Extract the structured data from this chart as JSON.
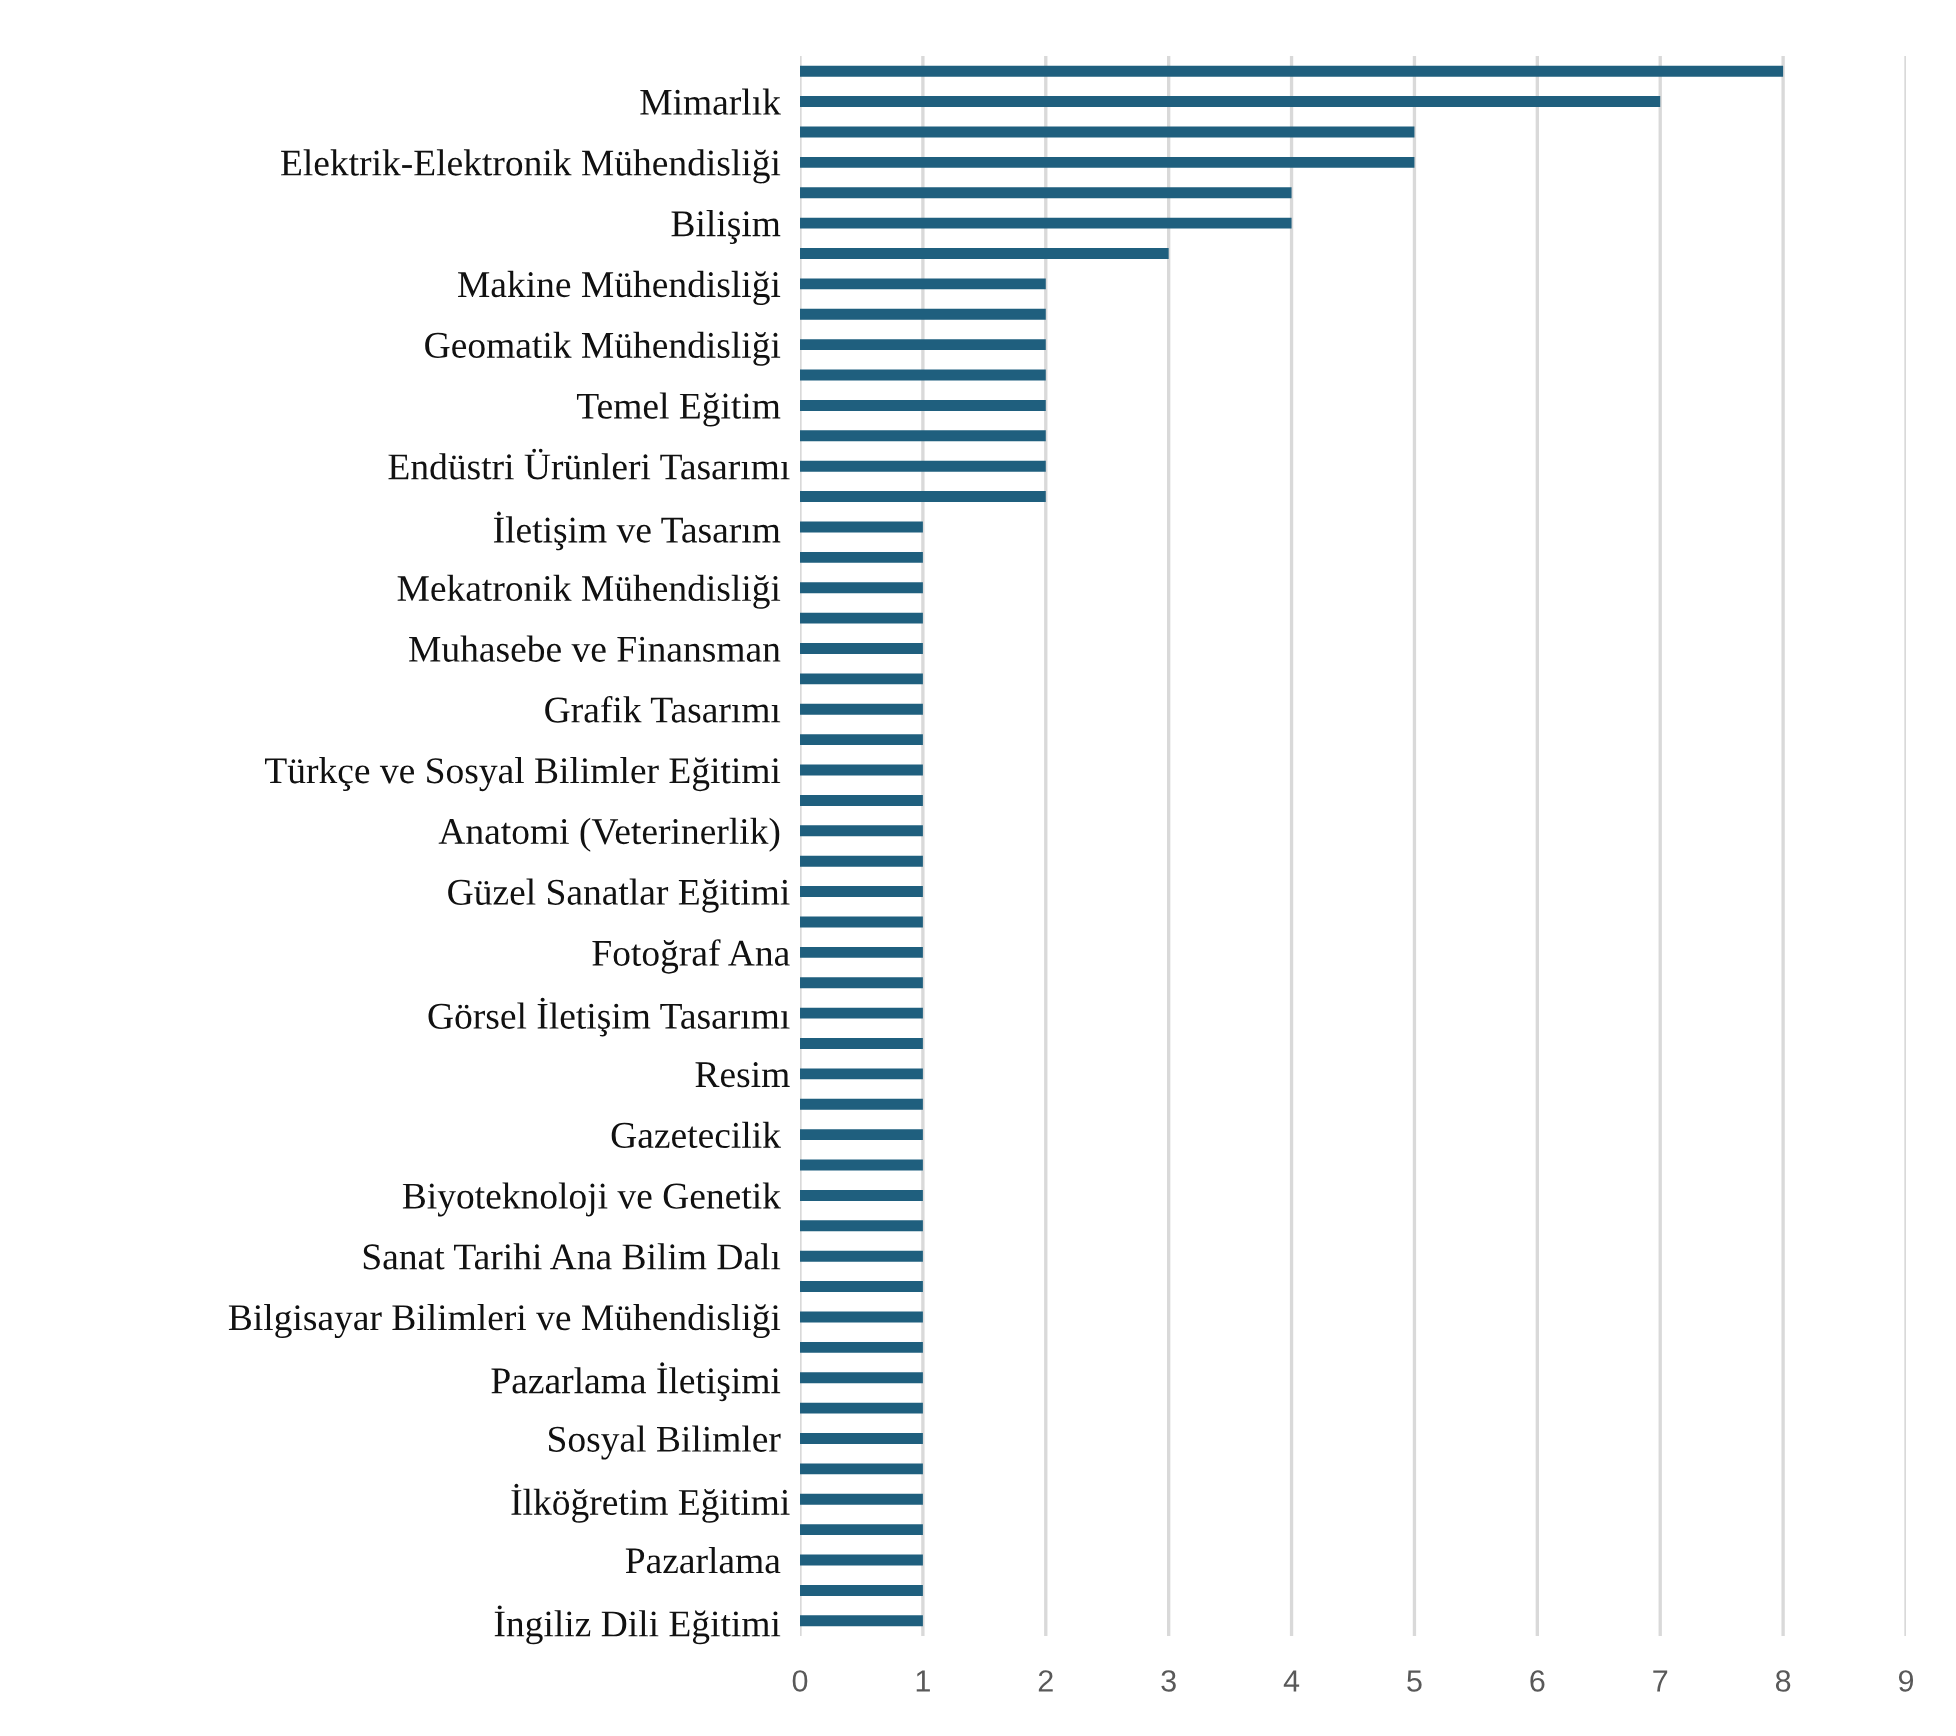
{
  "chart_data": {
    "type": "bar",
    "orientation": "horizontal",
    "categories": [
      null,
      "Mimarlık ",
      null,
      "Elektrik-Elektronik Mühendisliği ",
      null,
      "Bilişim ",
      null,
      "Makine Mühendisliği ",
      null,
      "Geomatik Mühendisliği ",
      null,
      "Temel Eğitim ",
      null,
      "Endüstri Ürünleri Tasarımı",
      null,
      "İletişim ve Tasarım ",
      null,
      "Mekatronik Mühendisliği ",
      null,
      "Muhasebe ve Finansman ",
      null,
      "Grafik Tasarımı ",
      null,
      "Türkçe ve Sosyal Bilimler Eğitimi ",
      null,
      "Anatomi (Veterinerlik) ",
      null,
      "Güzel Sanatlar Eğitimi",
      null,
      "Fotoğraf Ana",
      null,
      "Görsel İletişim Tasarımı",
      null,
      "Resim",
      null,
      "Gazetecilik ",
      null,
      "Biyoteknoloji ve Genetik ",
      null,
      "Sanat Tarihi Ana Bilim Dalı ",
      null,
      "Bilgisayar Bilimleri ve Mühendisliği ",
      null,
      "Pazarlama İletişimi ",
      null,
      "Sosyal Bilimler ",
      null,
      "İlköğretim Eğitimi",
      null,
      "Pazarlama ",
      null,
      "İngiliz Dili Eğitimi "
    ],
    "values": [
      8,
      7,
      5,
      5,
      4,
      4,
      3,
      2,
      2,
      2,
      2,
      2,
      2,
      2,
      2,
      1,
      1,
      1,
      1,
      1,
      1,
      1,
      1,
      1,
      1,
      1,
      1,
      1,
      1,
      1,
      1,
      1,
      1,
      1,
      1,
      1,
      1,
      1,
      1,
      1,
      1,
      1,
      1,
      1,
      1,
      1,
      1,
      1,
      1,
      1,
      1,
      1
    ],
    "color": "#1f5f7e",
    "xlim": [
      0,
      9
    ],
    "xticks": [
      0,
      1,
      2,
      3,
      4,
      5,
      6,
      7,
      8,
      9
    ],
    "grid": "x",
    "legend": false
  }
}
